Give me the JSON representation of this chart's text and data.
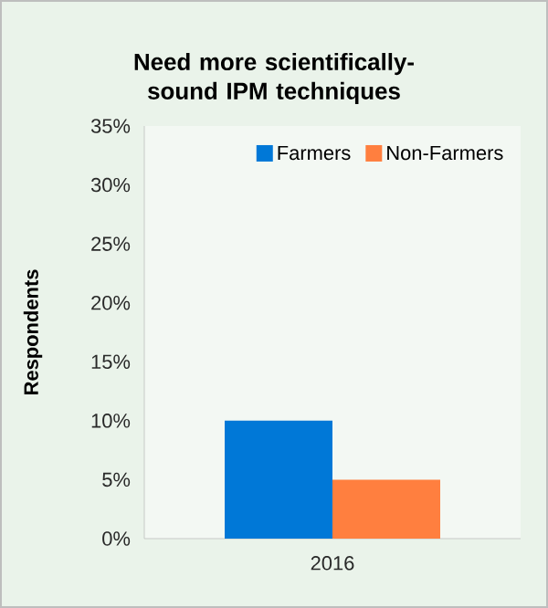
{
  "chart_data": {
    "type": "bar",
    "title": "Need more scientifically-sound IPM techniques",
    "ylabel": "Respondents",
    "categories": [
      "2016"
    ],
    "series": [
      {
        "name": "Farmers",
        "color": "#0078d7",
        "values": [
          10
        ]
      },
      {
        "name": "Non-Farmers",
        "color": "#ff7f3f",
        "values": [
          5
        ]
      }
    ],
    "ylim": [
      0,
      35
    ],
    "yticks": [
      {
        "value": 0,
        "label": "0%"
      },
      {
        "value": 5,
        "label": "5%"
      },
      {
        "value": 10,
        "label": "10%"
      },
      {
        "value": 15,
        "label": "15%"
      },
      {
        "value": 20,
        "label": "20%"
      },
      {
        "value": 25,
        "label": "25%"
      },
      {
        "value": 30,
        "label": "30%"
      },
      {
        "value": 35,
        "label": "35%"
      }
    ],
    "legend": "top right",
    "grid": false
  }
}
